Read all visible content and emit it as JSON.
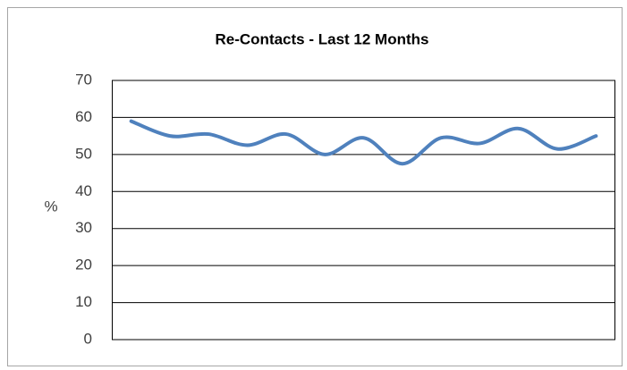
{
  "chart_data": {
    "type": "line",
    "title": "Re-Contacts - Last 12 Months",
    "y_label": "%",
    "categories": [
      null,
      null,
      null,
      null,
      null,
      null,
      null,
      null,
      null,
      null,
      null,
      null,
      null
    ],
    "values": [
      59,
      55,
      55.5,
      52.5,
      55.5,
      50,
      54.5,
      47.5,
      54.5,
      53,
      57,
      51.5,
      55
    ],
    "color": "#4f81bd",
    "smooth": true,
    "ylim": [
      0,
      70
    ],
    "yticks": [
      0,
      10,
      20,
      30,
      40,
      50,
      60,
      70
    ],
    "grid": true
  }
}
